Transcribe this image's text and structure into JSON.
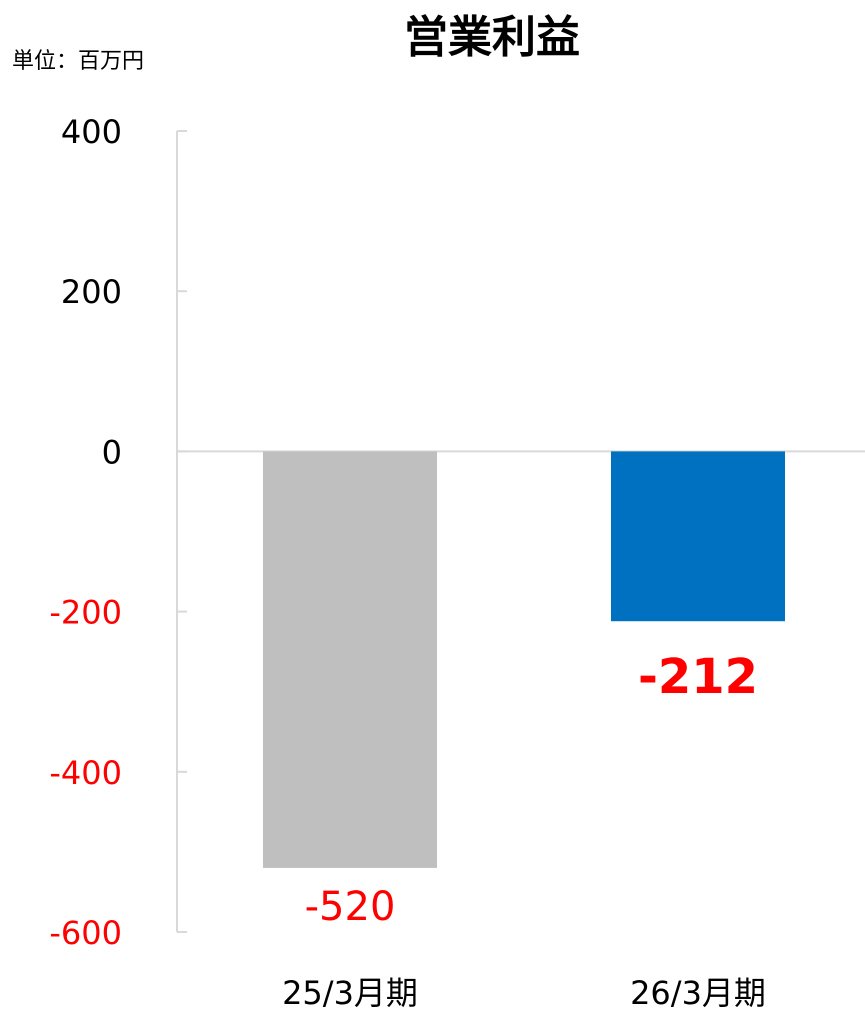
{
  "chart_data": {
    "type": "bar",
    "title": "営業利益",
    "unit_label": "単位：百万円",
    "categories": [
      "25/3月期",
      "26/3月期"
    ],
    "values": [
      -520,
      -212
    ],
    "data_labels": [
      "-520",
      "-212"
    ],
    "ylim": [
      -600,
      400
    ],
    "yticks": [
      400,
      200,
      0,
      -200,
      -400,
      -600
    ],
    "ytick_labels": [
      "400",
      "200",
      "0",
      "-200",
      "-400",
      "-600"
    ],
    "grid": false,
    "colors": {
      "bars": [
        "#bfbfbf",
        "#0070c0"
      ],
      "positive_tick": "#000000",
      "negative_tick": "#ff0000",
      "data_label": "#ff0000",
      "axis": "#d9d9d9"
    }
  }
}
